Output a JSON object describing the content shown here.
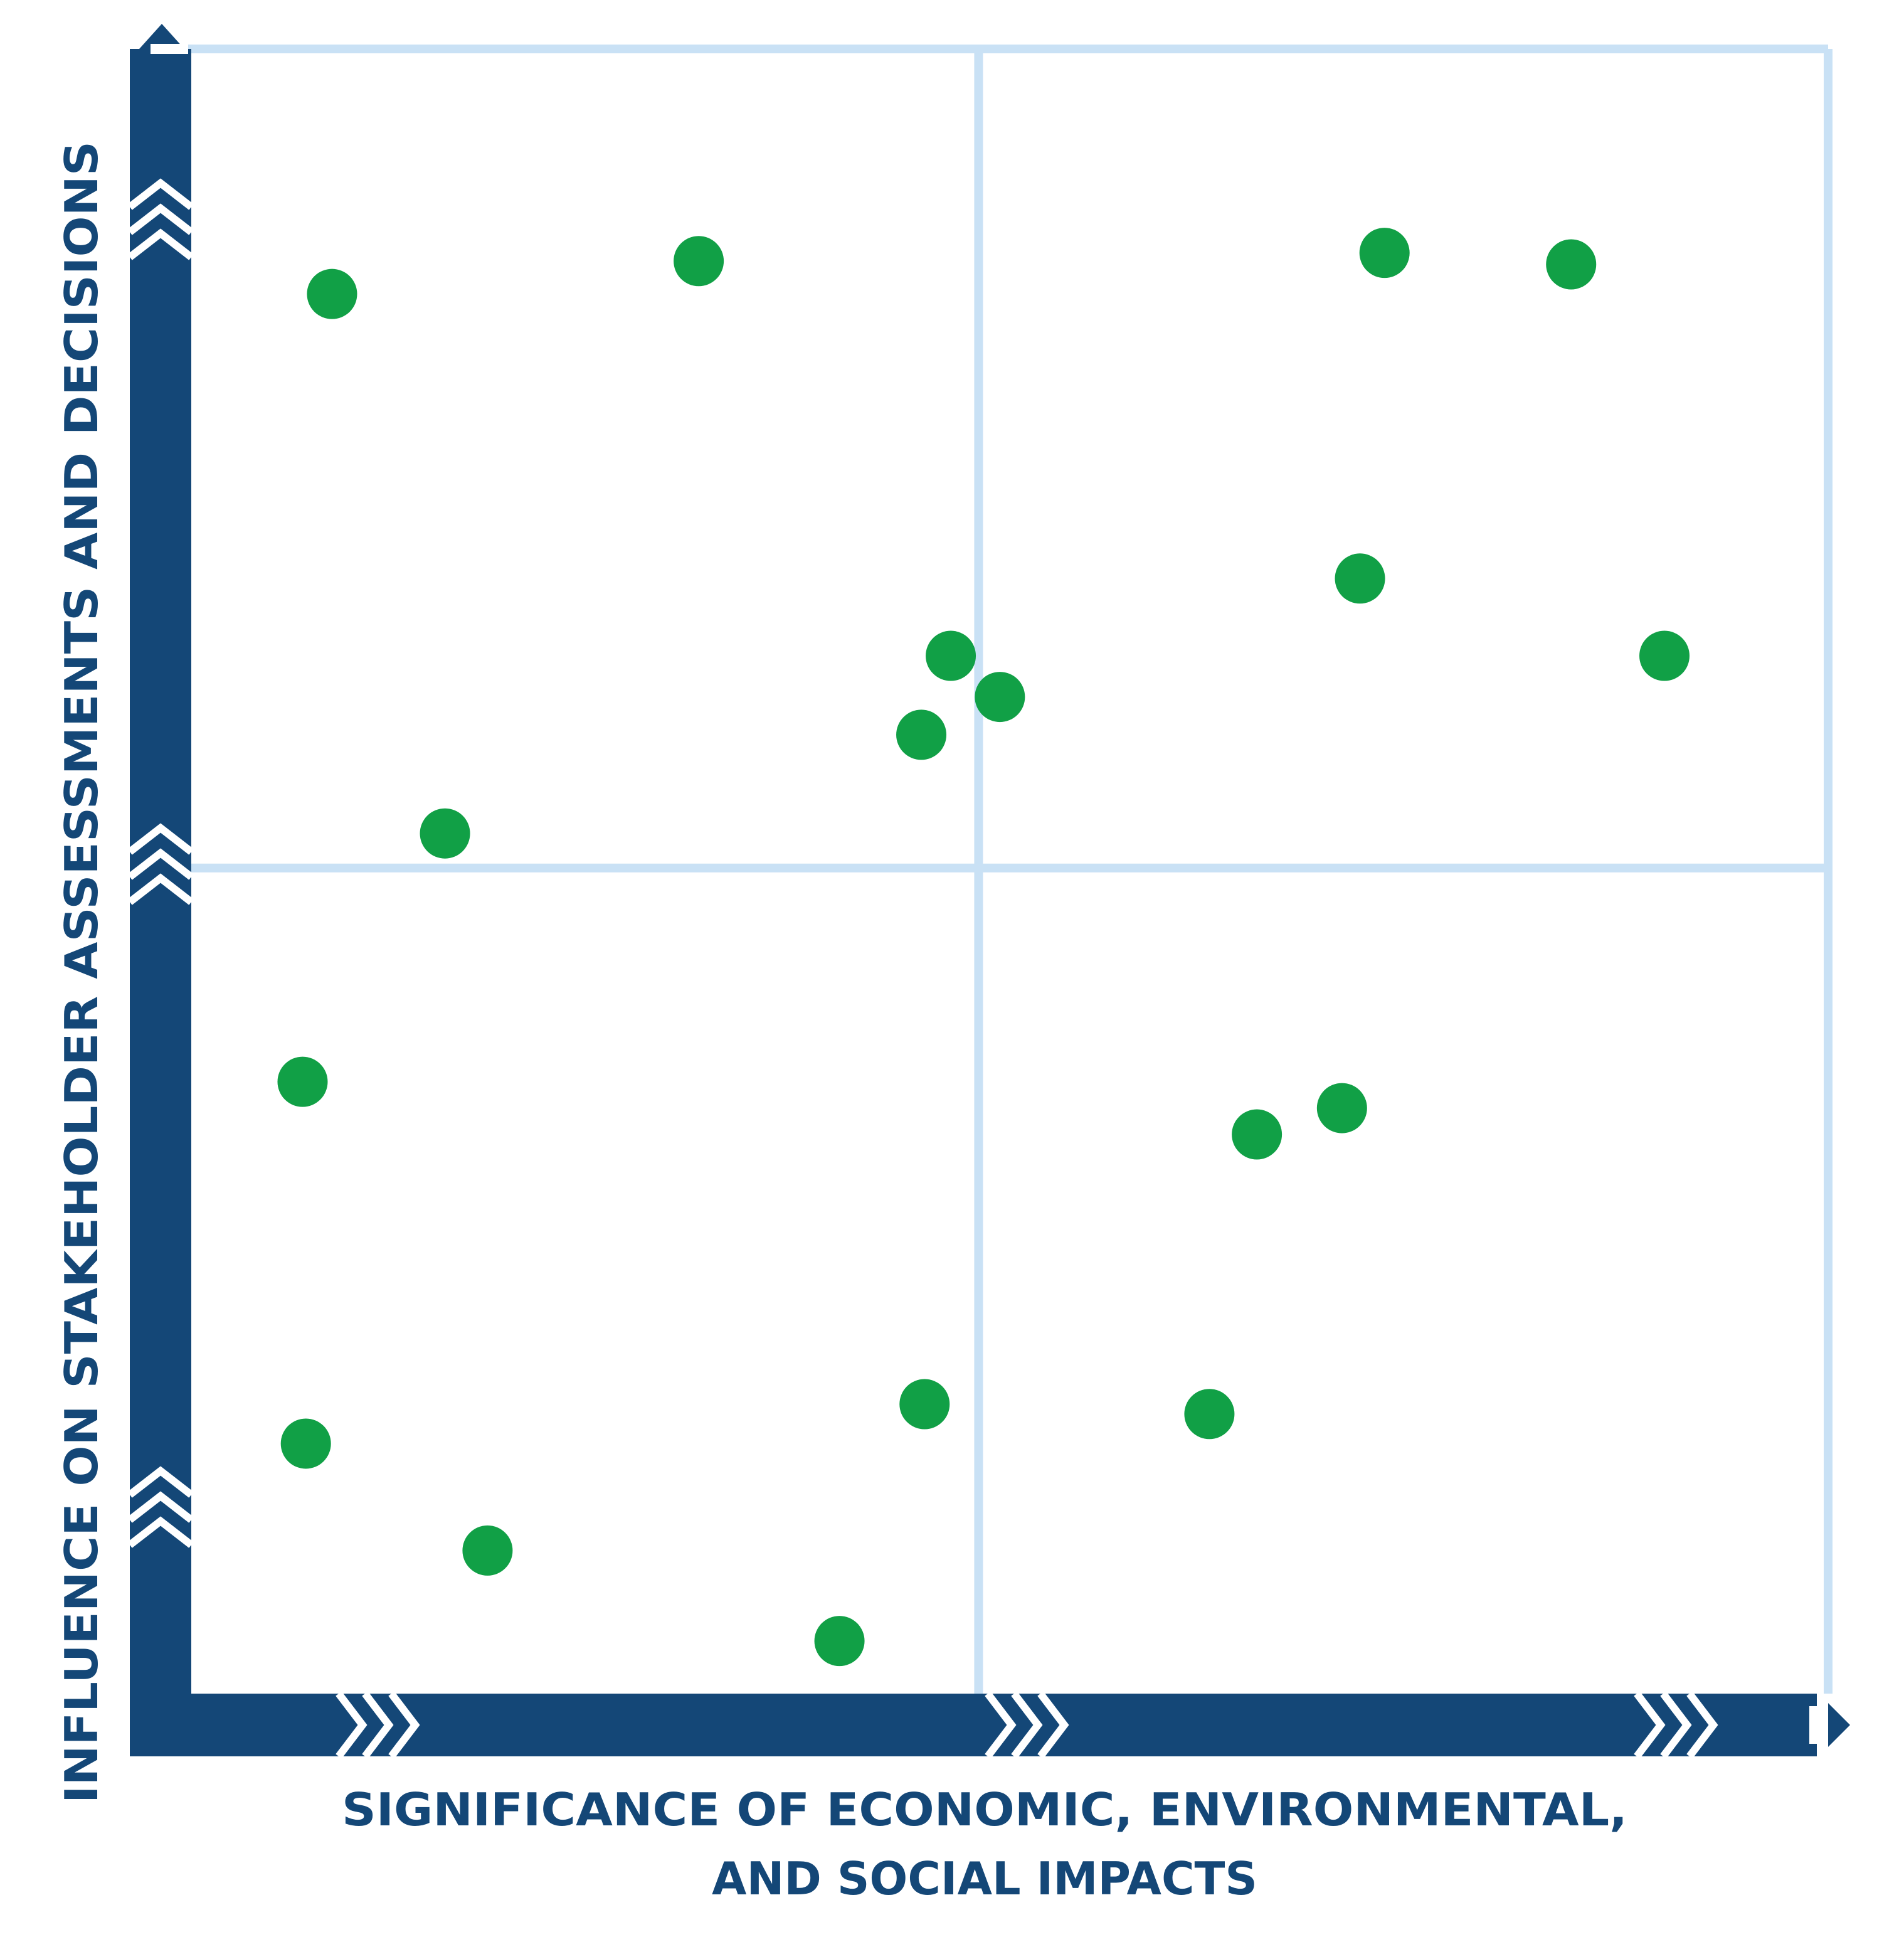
{
  "colors": {
    "axis": "#144777",
    "grid": "#c9e1f5",
    "point": "#11a046",
    "chevron": "#ffffff",
    "background": "#ffffff"
  },
  "chart_data": {
    "type": "scatter",
    "title": "",
    "xlabel_lines": [
      "SIGNIFICANCE OF ECONOMIC, ENVIRONMENTAL,",
      "AND SOCIAL IMPACTS"
    ],
    "ylabel": "INFLUENCE ON STAKEHOLDER ASSESSMENTS AND DECISIONS",
    "xlim": [
      0,
      100
    ],
    "ylim": [
      0,
      100
    ],
    "x_divider": 48.1,
    "y_divider": 50.2,
    "grid": "quadrant lines only",
    "legend": "none",
    "tick_labels": "none",
    "series": [
      {
        "points": [
          {
            "x": 8.6,
            "y": 85.1
          },
          {
            "x": 31.0,
            "y": 87.1
          },
          {
            "x": 72.9,
            "y": 87.6
          },
          {
            "x": 84.3,
            "y": 86.9
          },
          {
            "x": 71.4,
            "y": 67.8
          },
          {
            "x": 90.0,
            "y": 63.1
          },
          {
            "x": 46.4,
            "y": 63.1
          },
          {
            "x": 49.4,
            "y": 60.6
          },
          {
            "x": 44.6,
            "y": 58.3
          },
          {
            "x": 15.5,
            "y": 52.3
          },
          {
            "x": 6.8,
            "y": 37.2
          },
          {
            "x": 70.3,
            "y": 35.6
          },
          {
            "x": 65.1,
            "y": 34.0
          },
          {
            "x": 44.8,
            "y": 17.6
          },
          {
            "x": 62.2,
            "y": 17.0
          },
          {
            "x": 7.0,
            "y": 15.2
          },
          {
            "x": 18.1,
            "y": 8.7
          },
          {
            "x": 39.6,
            "y": 3.2
          }
        ]
      }
    ]
  }
}
